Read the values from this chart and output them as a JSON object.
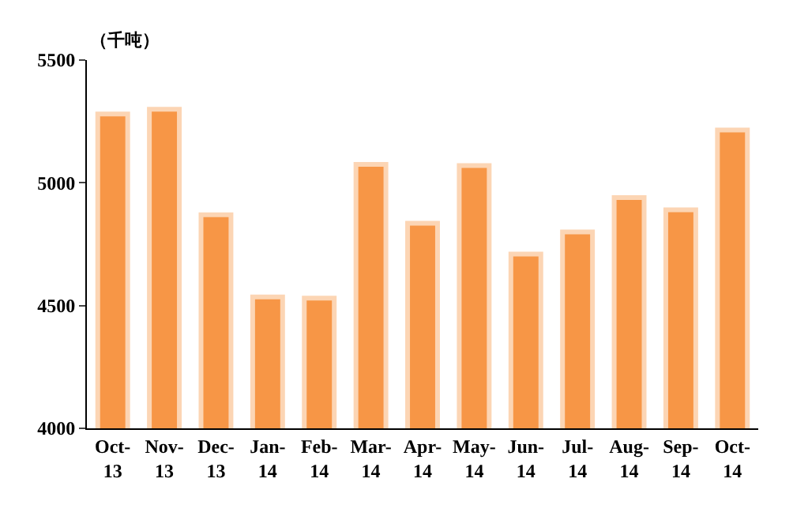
{
  "chart_data": {
    "type": "bar",
    "ylabel": "（千吨）",
    "categories": [
      "Oct-13",
      "Nov-13",
      "Dec-13",
      "Jan-14",
      "Feb-14",
      "Mar-14",
      "Apr-14",
      "May-14",
      "Jun-14",
      "Jul-14",
      "Aug-14",
      "Sep-14",
      "Oct-14"
    ],
    "values": [
      5280,
      5300,
      4870,
      4535,
      4530,
      5075,
      4835,
      5070,
      4710,
      4800,
      4940,
      4890,
      5215
    ],
    "color": "#f79646",
    "ylim": [
      4000,
      5500
    ],
    "yticks": [
      4000,
      4500,
      5000,
      5500
    ],
    "grid": false
  }
}
